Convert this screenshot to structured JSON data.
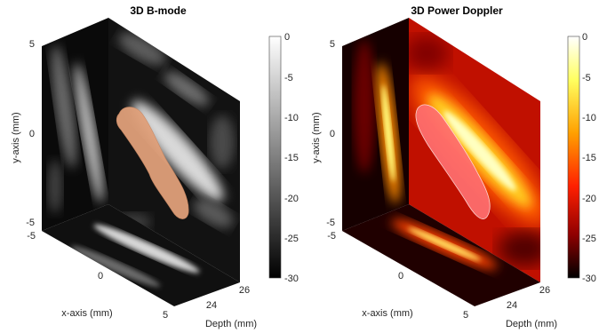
{
  "panels": [
    {
      "title": "3D B-mode",
      "ylabel": "y-axis (mm)",
      "xlabel": "x-axis (mm)",
      "zlabel": "Depth (mm)",
      "y_ticks": [
        "5",
        "0",
        "-5"
      ],
      "x_ticks": [
        "-5",
        "0",
        "5"
      ],
      "z_ticks": [
        "24",
        "26"
      ],
      "colormap": "gray",
      "colorbar_ticks": [
        "0",
        "-5",
        "-10",
        "-15",
        "-20",
        "-25",
        "-30"
      ],
      "surface_color": "#e0a07a"
    },
    {
      "title": "3D Power Doppler",
      "ylabel": "y-axis (mm)",
      "xlabel": "x-axis (mm)",
      "zlabel": "Depth (mm)",
      "y_ticks": [
        "5",
        "0",
        "-5"
      ],
      "x_ticks": [
        "-5",
        "0",
        "5"
      ],
      "z_ticks": [
        "24",
        "26"
      ],
      "colormap": "hot",
      "colorbar_ticks": [
        "0",
        "-5",
        "-10",
        "-15",
        "-20",
        "-25",
        "-30"
      ],
      "surface_color": "#ff7070"
    }
  ],
  "colors": {
    "gray_top": "#ffffff",
    "gray_bottom": "#000000",
    "hot_stops": [
      "#ffffff",
      "#ffff40",
      "#ffa000",
      "#ff2000",
      "#a00000",
      "#000000"
    ]
  }
}
